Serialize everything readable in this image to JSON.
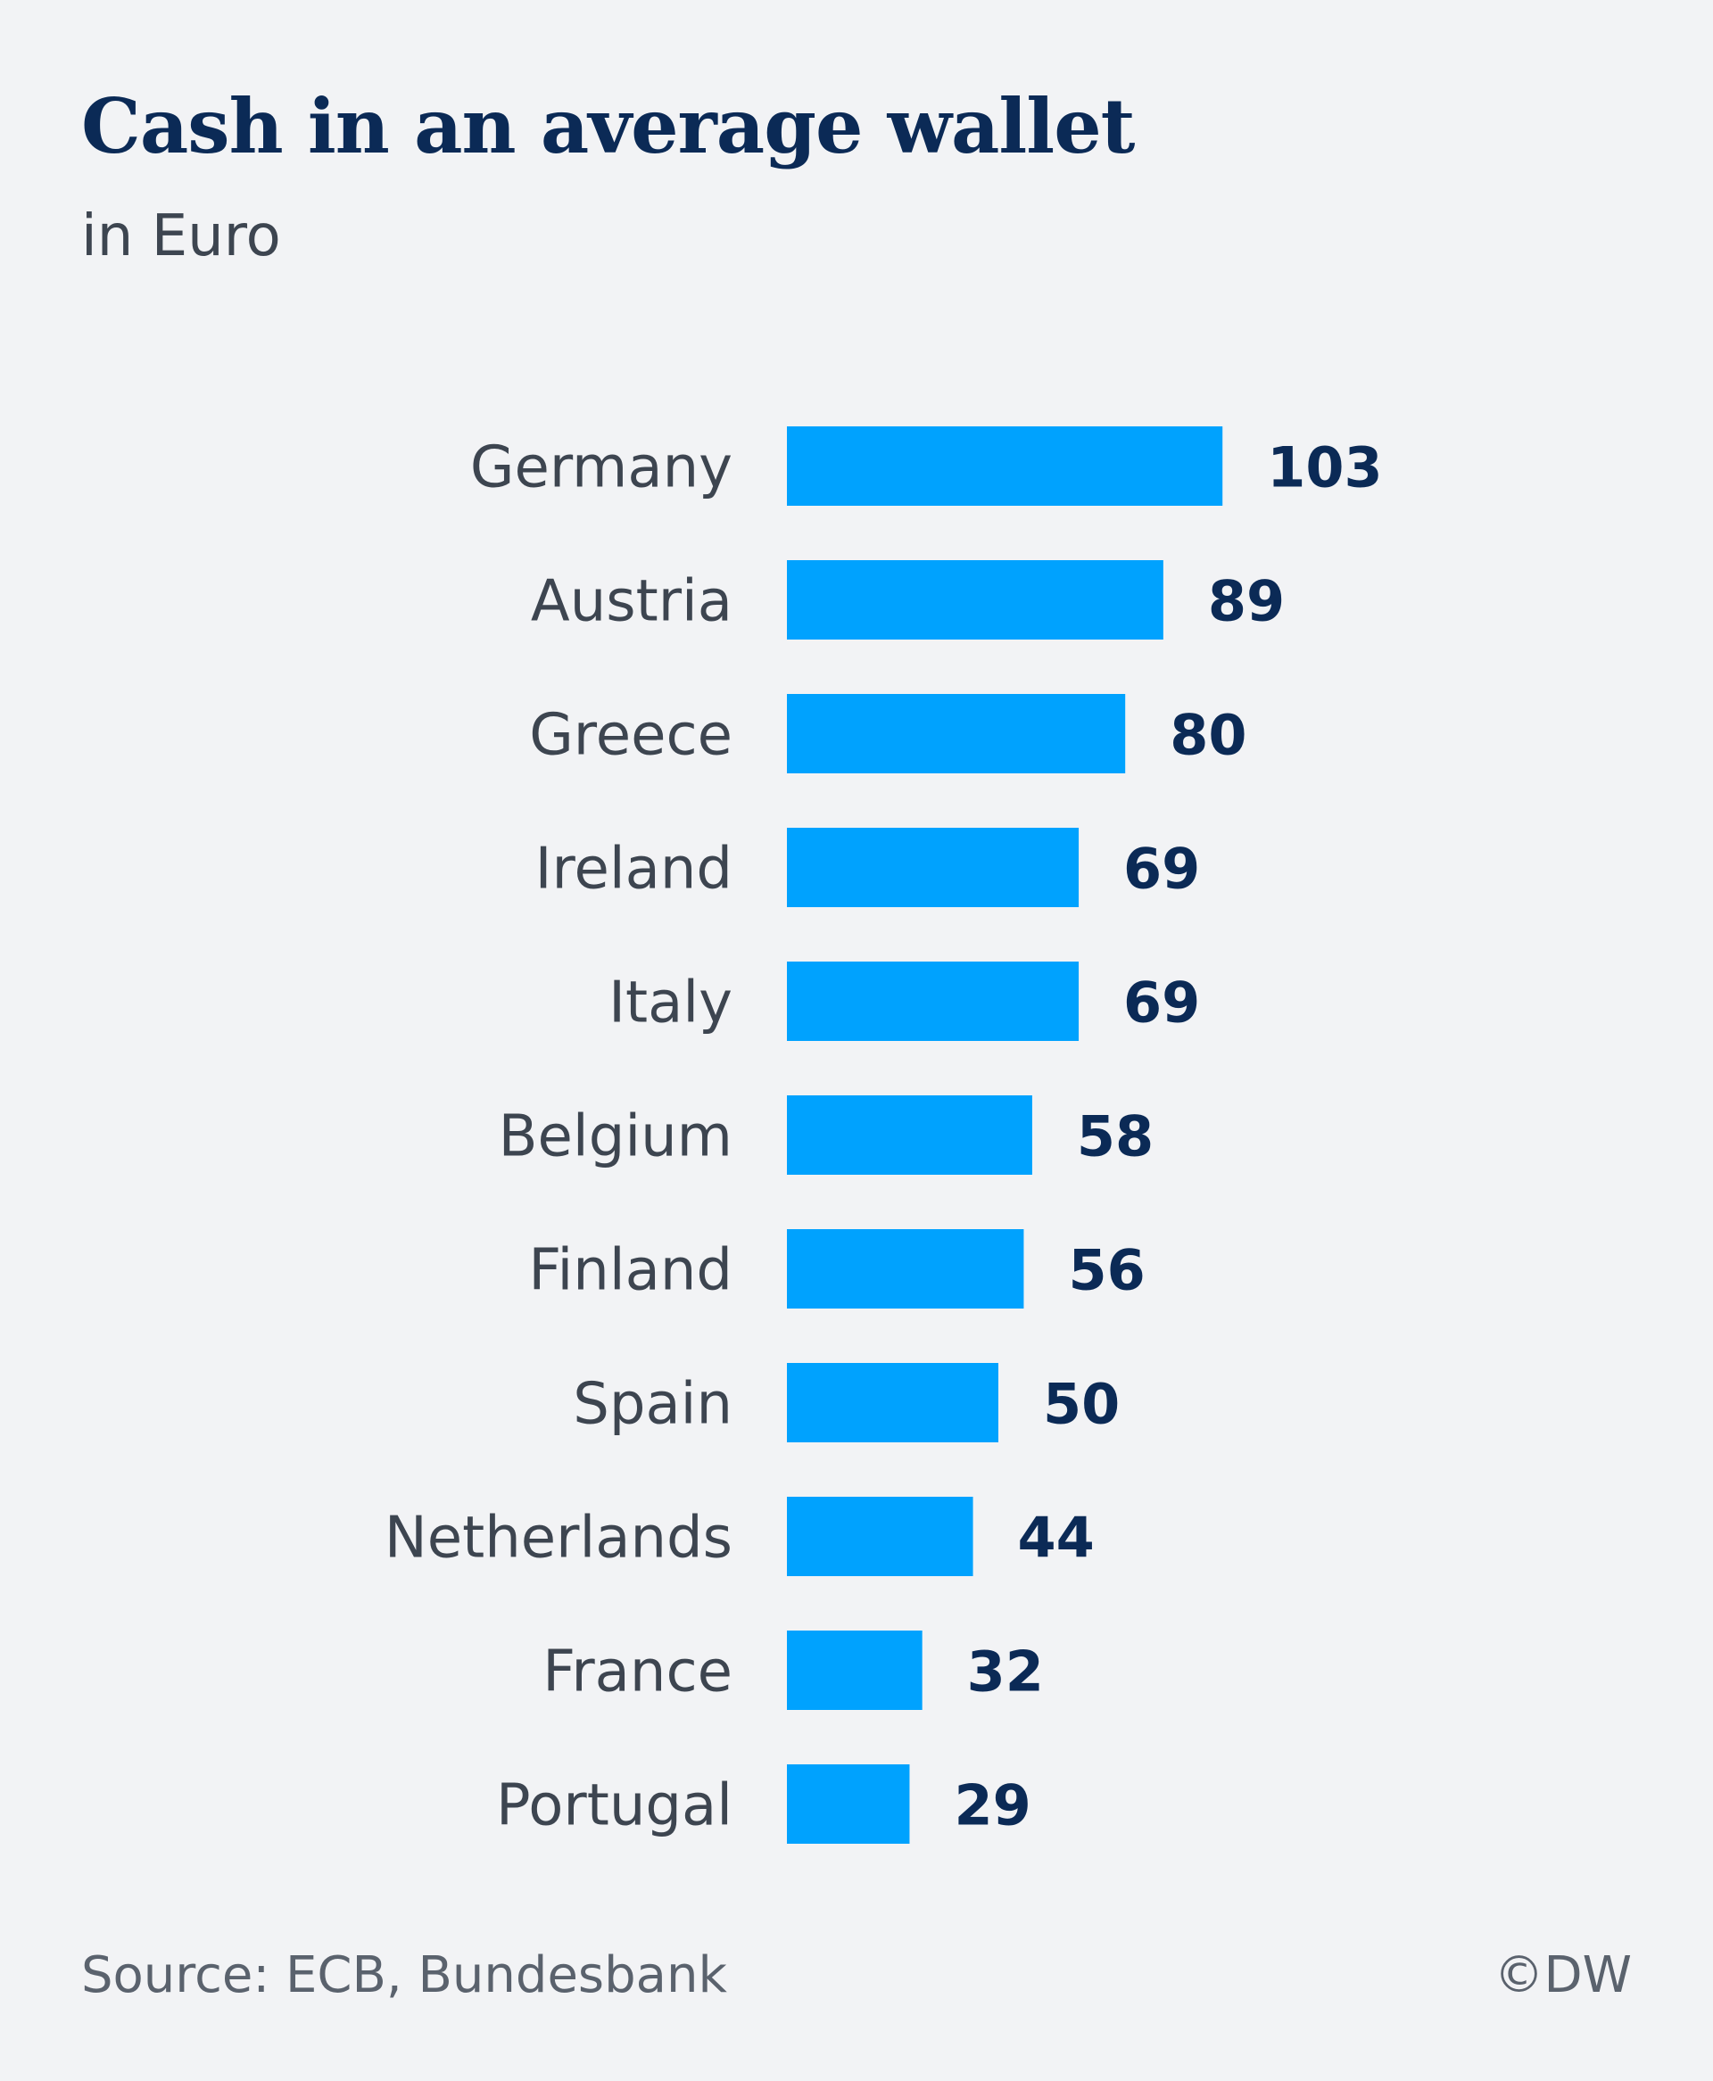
{
  "title": "Cash in an average wallet",
  "subtitle": "in Euro",
  "source": "Source: ECB, Bundesbank",
  "credit": "©DW",
  "colors": {
    "bar": "#00a2fe",
    "value_label": "#0b2a56",
    "category_label": "#3d4550",
    "background": "#f2f3f5"
  },
  "chart_data": {
    "type": "bar",
    "orientation": "horizontal",
    "title": "Cash in an average wallet",
    "subtitle": "in Euro",
    "categories": [
      "Germany",
      "Austria",
      "Greece",
      "Ireland",
      "Italy",
      "Belgium",
      "Finland",
      "Spain",
      "Netherlands",
      "France",
      "Portugal"
    ],
    "values": [
      103,
      89,
      80,
      69,
      69,
      58,
      56,
      50,
      44,
      32,
      29
    ],
    "data_labels": true,
    "grid": false,
    "legend": "none"
  }
}
